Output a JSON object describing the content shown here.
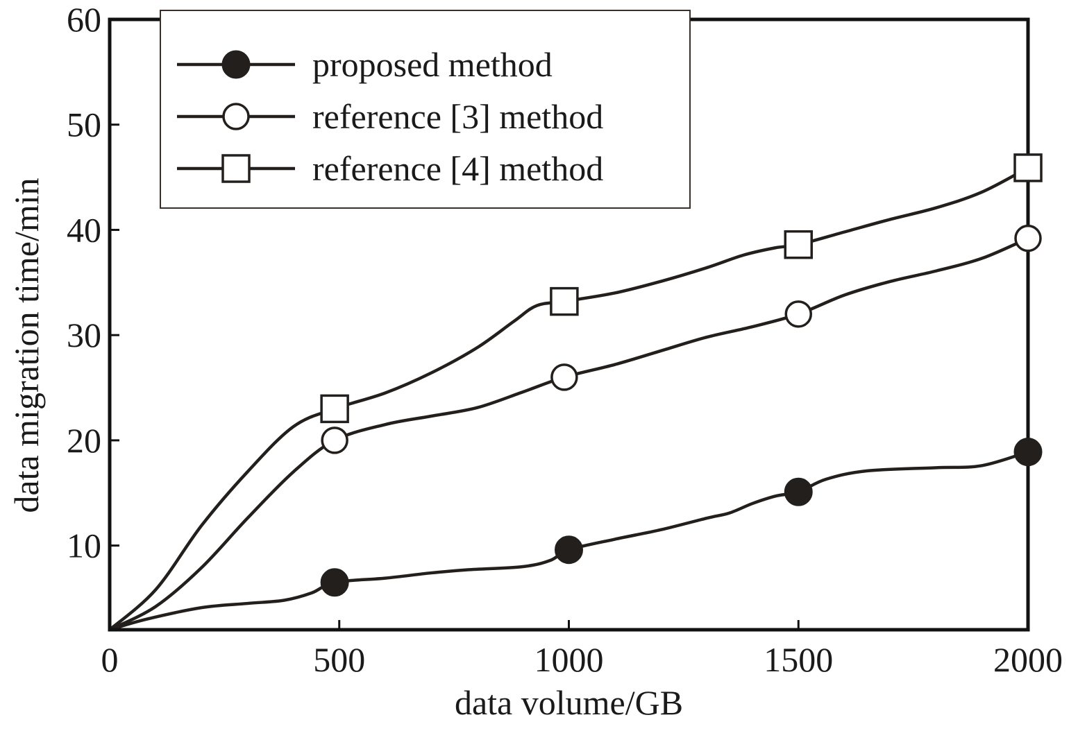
{
  "chart_data": {
    "type": "line",
    "title": "",
    "xlabel": "data volume/GB",
    "ylabel": "data migration time/min",
    "xlim": [
      0,
      2000
    ],
    "ylim": [
      2,
      60
    ],
    "x_ticks": [
      0,
      500,
      1000,
      1500,
      2000
    ],
    "y_ticks": [
      10,
      20,
      30,
      40,
      50,
      60
    ],
    "grid": false,
    "legend_position": "top-left",
    "colors": {
      "line": "#231f1c",
      "frame": "#111111"
    },
    "series": [
      {
        "name": "proposed method",
        "marker": "filled-circle",
        "points": [
          [
            0,
            2
          ],
          [
            490,
            6.5
          ],
          [
            1000,
            9.6
          ],
          [
            1500,
            15.1
          ],
          [
            2000,
            18.9
          ]
        ],
        "curve": [
          [
            0,
            2
          ],
          [
            80,
            3
          ],
          [
            200,
            4.1
          ],
          [
            300,
            4.5
          ],
          [
            380,
            4.8
          ],
          [
            440,
            5.5
          ],
          [
            490,
            6.5
          ],
          [
            600,
            6.9
          ],
          [
            700,
            7.4
          ],
          [
            780,
            7.7
          ],
          [
            900,
            8.0
          ],
          [
            960,
            8.6
          ],
          [
            1000,
            9.6
          ],
          [
            1100,
            10.6
          ],
          [
            1200,
            11.5
          ],
          [
            1300,
            12.6
          ],
          [
            1350,
            13.1
          ],
          [
            1400,
            14.0
          ],
          [
            1450,
            14.7
          ],
          [
            1500,
            15.1
          ],
          [
            1560,
            16.3
          ],
          [
            1650,
            17.1
          ],
          [
            1800,
            17.4
          ],
          [
            1900,
            17.6
          ],
          [
            2000,
            18.9
          ]
        ]
      },
      {
        "name": "reference [3] method",
        "marker": "open-circle",
        "points": [
          [
            0,
            2
          ],
          [
            490,
            20.0
          ],
          [
            990,
            26.0
          ],
          [
            1500,
            32.0
          ],
          [
            2000,
            39.2
          ]
        ],
        "curve": [
          [
            0,
            2
          ],
          [
            100,
            4.2
          ],
          [
            200,
            7.9
          ],
          [
            300,
            12.6
          ],
          [
            400,
            17.0
          ],
          [
            490,
            20.0
          ],
          [
            600,
            21.5
          ],
          [
            700,
            22.3
          ],
          [
            800,
            23.1
          ],
          [
            900,
            24.6
          ],
          [
            990,
            26.0
          ],
          [
            1100,
            27.2
          ],
          [
            1200,
            28.5
          ],
          [
            1300,
            29.8
          ],
          [
            1400,
            30.8
          ],
          [
            1500,
            32.0
          ],
          [
            1600,
            33.8
          ],
          [
            1700,
            35.1
          ],
          [
            1800,
            36.1
          ],
          [
            1900,
            37.3
          ],
          [
            2000,
            39.2
          ]
        ]
      },
      {
        "name": "reference [4] method",
        "marker": "open-square",
        "points": [
          [
            0,
            2
          ],
          [
            490,
            23.0
          ],
          [
            990,
            33.2
          ],
          [
            1500,
            38.6
          ],
          [
            2000,
            45.9
          ]
        ],
        "curve": [
          [
            0,
            2
          ],
          [
            100,
            5.8
          ],
          [
            200,
            11.9
          ],
          [
            300,
            17.0
          ],
          [
            400,
            21.3
          ],
          [
            490,
            23.0
          ],
          [
            600,
            24.5
          ],
          [
            700,
            26.4
          ],
          [
            800,
            28.8
          ],
          [
            880,
            31.3
          ],
          [
            930,
            32.8
          ],
          [
            990,
            33.2
          ],
          [
            1100,
            34.0
          ],
          [
            1200,
            35.1
          ],
          [
            1300,
            36.4
          ],
          [
            1380,
            37.6
          ],
          [
            1450,
            38.3
          ],
          [
            1500,
            38.6
          ],
          [
            1600,
            39.8
          ],
          [
            1700,
            41.0
          ],
          [
            1800,
            42.1
          ],
          [
            1900,
            43.6
          ],
          [
            2000,
            45.9
          ]
        ]
      }
    ]
  }
}
